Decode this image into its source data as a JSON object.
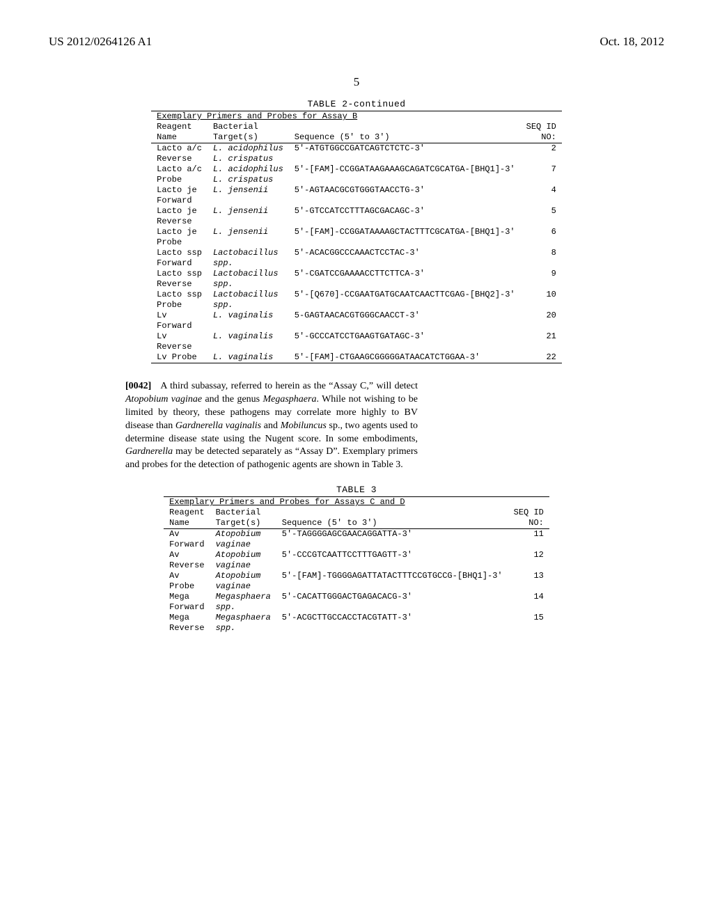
{
  "header": {
    "pub_no": "US 2012/0264126 A1",
    "pub_date": "Oct. 18, 2012"
  },
  "page_number": "5",
  "table2": {
    "title": "TABLE 2-continued",
    "caption": "Exemplary Primers and Probes for Assay B",
    "columns": {
      "c1a": "Reagent",
      "c1b": "Name",
      "c2a": "Bacterial",
      "c2b": "Target(s)",
      "c3": "Sequence (5' to 3')",
      "c4a": "SEQ ID",
      "c4b": "NO:"
    },
    "rows": [
      {
        "name_a": "Lacto a/c",
        "name_b": "Reverse",
        "target_a": "L. acidophilus",
        "target_b": "L. crispatus",
        "seq": "5'-ATGTGGCCGATCAGTCTCTC-3'",
        "id": "2"
      },
      {
        "name_a": "Lacto a/c",
        "name_b": "Probe",
        "target_a": "L. acidophilus",
        "target_b": "L. crispatus",
        "seq": "5'-[FAM]-CCGGATAAGAAAGCAGATCGCATGA-[BHQ1]-3'",
        "id": "7"
      },
      {
        "name_a": "Lacto je",
        "name_b": "Forward",
        "target_a": "L. jensenii",
        "target_b": "",
        "seq": "5'-AGTAACGCGTGGGTAACCTG-3'",
        "id": "4"
      },
      {
        "name_a": "Lacto je",
        "name_b": "Reverse",
        "target_a": "L. jensenii",
        "target_b": "",
        "seq": "5'-GTCCATCCTTTAGCGACAGC-3'",
        "id": "5"
      },
      {
        "name_a": "Lacto je",
        "name_b": "Probe",
        "target_a": "L. jensenii",
        "target_b": "",
        "seq": "5'-[FAM]-CCGGATAAAAGCTACTTTCGCATGA-[BHQ1]-3'",
        "id": "6"
      },
      {
        "name_a": "Lacto ssp",
        "name_b": "Forward",
        "target_a": "Lactobacillus",
        "target_b": "spp.",
        "seq": "5'-ACACGGCCCAAACTCCTAC-3'",
        "id": "8"
      },
      {
        "name_a": "Lacto ssp",
        "name_b": "Reverse",
        "target_a": "Lactobacillus",
        "target_b": "spp.",
        "seq": "5'-CGATCCGAAAACCTTCTTCA-3'",
        "id": "9"
      },
      {
        "name_a": "Lacto ssp",
        "name_b": "Probe",
        "target_a": "Lactobacillus",
        "target_b": "spp.",
        "seq": "5'-[Q670]-CCGAATGATGCAATCAACTTCGAG-[BHQ2]-3'",
        "id": "10"
      },
      {
        "name_a": "Lv",
        "name_b": "Forward",
        "target_a": "L. vaginalis",
        "target_b": "",
        "seq": "5-GAGTAACACGTGGGCAACCT-3'",
        "id": "20"
      },
      {
        "name_a": "Lv",
        "name_b": "Reverse",
        "target_a": "L. vaginalis",
        "target_b": "",
        "seq": "5'-GCCCATCCTGAAGTGATAGC-3'",
        "id": "21"
      },
      {
        "name_a": "Lv Probe",
        "name_b": "",
        "target_a": "L. vaginalis",
        "target_b": "",
        "seq": "5'-[FAM]-CTGAAGCGGGGGATAACATCTGGAA-3'",
        "id": "22"
      }
    ]
  },
  "paragraph": {
    "num": "[0042]",
    "text_a": "A third subassay, referred to herein as the “Assay C,” will detect ",
    "it_a": "Atopobium vaginae",
    "text_b": " and the genus ",
    "it_b": "Megasphaera",
    "text_c": ". While not wishing to be limited by theory, these pathogens may correlate more highly to BV disease than ",
    "it_c": "Gardnerella vaginalis",
    "text_d": " and ",
    "it_d": "Mobiluncus",
    "text_e": " sp., two agents used to determine disease state using the Nugent score. In some embodiments, ",
    "it_e": "Gardnerella",
    "text_f": " may be detected separately as “Assay D”. Exemplary primers and probes for the detection of pathogenic agents are shown in Table 3."
  },
  "table3": {
    "title": "TABLE 3",
    "caption": "Exemplary Primers and Probes for Assays C and D",
    "columns": {
      "c1a": "Reagent",
      "c1b": "Name",
      "c2a": "Bacterial",
      "c2b": "Target(s)",
      "c3": "Sequence (5' to 3')",
      "c4a": "SEQ ID",
      "c4b": "NO:"
    },
    "rows": [
      {
        "name_a": "Av",
        "name_b": "Forward",
        "target_a": "Atopobium",
        "target_b": "vaginae",
        "seq": "5'-TAGGGGAGCGAACAGGATTA-3'",
        "id": "11"
      },
      {
        "name_a": "Av",
        "name_b": "Reverse",
        "target_a": "Atopobium",
        "target_b": "vaginae",
        "seq": "5'-CCCGTCAATTCCTTTGAGTT-3'",
        "id": "12"
      },
      {
        "name_a": "Av",
        "name_b": "Probe",
        "target_a": "Atopobium",
        "target_b": "vaginae",
        "seq": "5'-[FAM]-TGGGGAGATTATACTTTCCGTGCCG-[BHQ1]-3'",
        "id": "13"
      },
      {
        "name_a": "Mega",
        "name_b": "Forward",
        "target_a": "Megasphaera",
        "target_b": "spp.",
        "seq": "5'-CACATTGGGACTGAGACACG-3'",
        "id": "14"
      },
      {
        "name_a": "Mega",
        "name_b": "Reverse",
        "target_a": "Megasphaera",
        "target_b": "spp.",
        "seq": "5'-ACGCTTGCCACCTACGTATT-3'",
        "id": "15"
      }
    ]
  }
}
